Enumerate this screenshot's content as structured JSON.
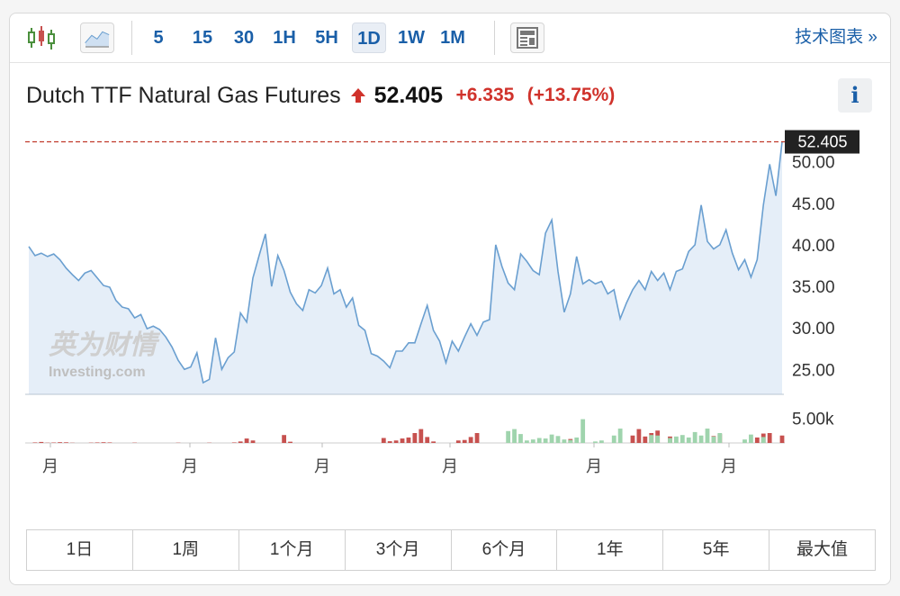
{
  "toolbar": {
    "intervals": [
      "5",
      "15",
      "30",
      "1H",
      "5H",
      "1D",
      "1W",
      "1M"
    ],
    "active_interval": "1D",
    "advanced_chart_label": "技术图表 »"
  },
  "quote": {
    "instrument": "Dutch TTF Natural Gas Futures",
    "direction_icon": "arrow-up-icon",
    "price": "52.405",
    "change": "+6.335",
    "change_pct": "(+13.75%)",
    "change_color": "#d0322b"
  },
  "ranges": [
    "1日",
    "1周",
    "1个月",
    "3个月",
    "6个月",
    "1年",
    "5年",
    "最大值"
  ],
  "watermark": {
    "cn": "英为财情",
    "en": "Investing.com"
  },
  "colors": {
    "line": "#6a9fd0",
    "area": "#e5eef8",
    "up_volume": "#c7514f",
    "down_volume": "#9fd4ad",
    "last_price": "#c0392b"
  },
  "chart_data": [
    {
      "type": "area",
      "series": [
        {
          "y": [
            39.8,
            38.7,
            39.0,
            38.6,
            38.9,
            38.2,
            37.2,
            36.4,
            35.7,
            36.6,
            36.9,
            36.0,
            35.1,
            34.9,
            33.3,
            32.5,
            32.3,
            31.2,
            31.6,
            29.9,
            30.2,
            29.8,
            28.9,
            27.7,
            26.1,
            25.0,
            25.3,
            27.0,
            23.4,
            23.8,
            28.8,
            25.0,
            26.4,
            27.1,
            31.8,
            30.7,
            36.0,
            38.7,
            41.3,
            35.0,
            38.7,
            36.9,
            34.3,
            32.9,
            32.1,
            34.6,
            34.2,
            35.1,
            37.2,
            34.1,
            34.6,
            32.5,
            33.6,
            30.3,
            29.7,
            26.9,
            26.6,
            26.0,
            25.2,
            27.2,
            27.2,
            28.2,
            28.2,
            30.5,
            32.7,
            29.7,
            28.4,
            25.8,
            28.4,
            27.2,
            28.9,
            30.5,
            29.1,
            30.7,
            31.0,
            40.0,
            37.4,
            35.4,
            34.6,
            38.9,
            38.0,
            36.9,
            36.4,
            41.4,
            43.0,
            36.8,
            31.9,
            34.1,
            38.6,
            35.3,
            35.8,
            35.3,
            35.6,
            34.1,
            34.6,
            31.1,
            33.0,
            34.6,
            35.7,
            34.6,
            36.8,
            35.7,
            36.6,
            34.6,
            36.8,
            37.1,
            39.2,
            40.0,
            44.8,
            40.4,
            39.5,
            40.0,
            41.8,
            39.0,
            37.0,
            38.2,
            36.1,
            38.2,
            44.8,
            49.7,
            45.9,
            52.4
          ]
        }
      ],
      "ylim": [
        22.0,
        53.0
      ],
      "yticks": [
        "50.00",
        "45.00",
        "40.00",
        "35.00",
        "30.00",
        "25.00"
      ],
      "last_value_label": "52.405",
      "grid": false
    },
    {
      "type": "bar",
      "name": "volume",
      "ytick": "5.00k",
      "ylim": [
        0,
        8000
      ],
      "up_values": [
        0,
        0,
        0,
        0,
        90,
        150,
        130,
        40,
        0,
        0,
        60,
        100,
        140,
        100,
        0,
        0,
        0,
        0,
        0,
        0,
        0,
        0,
        0,
        0,
        0,
        0,
        0,
        0,
        0,
        50,
        0,
        0,
        0,
        0,
        0,
        0,
        0,
        0,
        0,
        0,
        0,
        1600,
        250,
        0,
        0,
        0,
        0,
        0,
        0,
        0,
        0,
        0,
        0,
        0,
        0,
        0,
        0,
        1000,
        350,
        500,
        900,
        1100,
        2000,
        2800,
        1200,
        300,
        0,
        0,
        0,
        500,
        600,
        1200,
        2000,
        0,
        0,
        0,
        0,
        0,
        0,
        0,
        0,
        0,
        0,
        0,
        0,
        0,
        0,
        800,
        0,
        0,
        0,
        0,
        0,
        0,
        0,
        0,
        0,
        1500,
        2800,
        1300,
        2000,
        2500,
        0,
        1300,
        0,
        0,
        0,
        0,
        0,
        0,
        1400,
        1800,
        0,
        0,
        0,
        0,
        0,
        1100,
        1900,
        2000,
        0,
        1500,
        0,
        1700,
        1700,
        1300,
        800,
        1500,
        2600,
        0,
        1800
      ],
      "down_values": [
        0,
        100,
        200,
        50,
        0,
        0,
        0,
        0,
        0,
        0,
        0,
        0,
        0,
        0,
        0,
        0,
        0,
        60,
        0,
        0,
        0,
        0,
        0,
        0,
        50,
        0,
        0,
        0,
        0,
        0,
        0,
        0,
        0,
        100,
        300,
        900,
        500,
        0,
        0,
        0,
        0,
        0,
        0,
        0,
        0,
        0,
        0,
        0,
        0,
        0,
        0,
        0,
        0,
        0,
        0,
        0,
        0,
        0,
        0,
        0,
        0,
        0,
        0,
        0,
        0,
        0,
        0,
        0,
        0,
        0,
        0,
        0,
        0,
        0,
        0,
        0,
        0,
        0,
        0,
        0,
        0,
        0,
        0,
        0,
        0,
        0,
        0,
        0,
        0,
        0,
        0,
        0,
        0,
        0,
        0,
        0,
        0,
        0,
        0,
        0,
        0,
        0,
        0,
        0,
        0,
        0,
        0,
        0,
        0,
        0,
        0,
        0,
        0,
        0,
        0,
        0,
        0,
        0,
        0,
        0,
        0,
        0,
        0,
        0,
        0,
        0,
        0,
        0,
        0,
        0
      ],
      "green_values": [
        0,
        0,
        0,
        0,
        0,
        0,
        0,
        0,
        0,
        0,
        0,
        0,
        0,
        0,
        0,
        0,
        0,
        0,
        0,
        0,
        0,
        0,
        0,
        0,
        0,
        0,
        0,
        0,
        0,
        0,
        0,
        0,
        0,
        0,
        0,
        0,
        0,
        0,
        0,
        0,
        0,
        0,
        0,
        0,
        0,
        0,
        0,
        0,
        0,
        0,
        0,
        0,
        0,
        0,
        0,
        0,
        0,
        0,
        0,
        0,
        0,
        0,
        0,
        0,
        0,
        0,
        0,
        0,
        0,
        0,
        0,
        0,
        0,
        0,
        0,
        0,
        0,
        2400,
        2800,
        1800,
        500,
        700,
        1000,
        900,
        1700,
        1400,
        700,
        600,
        1100,
        4800,
        0,
        300,
        500,
        0,
        1500,
        2900,
        0,
        0,
        0,
        0,
        1600,
        1500,
        0,
        1000,
        1300,
        1600,
        1100,
        2200,
        1500,
        2900,
        1300,
        2000,
        0,
        0,
        0,
        700,
        1700,
        0,
        1200,
        0,
        0,
        0,
        0,
        0,
        0,
        0,
        0,
        0,
        0,
        0,
        0,
        0
      ]
    }
  ],
  "x_axis_labels": [
    "月",
    "月",
    "月",
    "月",
    "月",
    "月"
  ]
}
